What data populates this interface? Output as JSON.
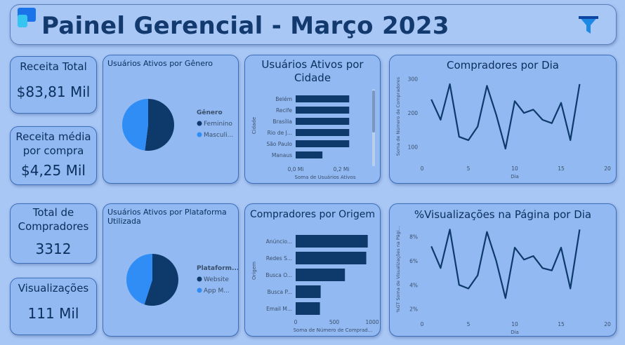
{
  "header": {
    "title": "Painel Gerencial - Março 2023"
  },
  "kpis": {
    "receita_total": {
      "label": "Receita Total",
      "value": "$83,81 Mil"
    },
    "receita_media": {
      "label": "Receita média por compra",
      "value": "$4,25 Mil"
    },
    "total_compradores": {
      "label": "Total de Compradores",
      "value": "3312"
    },
    "visualizacoes": {
      "label": "Visualizações",
      "value": "111 Mil"
    }
  },
  "colors": {
    "dark": "#0d3a6b",
    "light": "#2f8df5"
  },
  "icons": {
    "logo": "power-bi-logo",
    "filter": "filter-icon"
  },
  "chart_data": [
    {
      "id": "genero",
      "type": "pie",
      "title": "Usuários Ativos por Gênero",
      "legend_title": "Gênero",
      "categories": [
        "Feminino",
        "Masculi..."
      ],
      "values": [
        52,
        48
      ],
      "colors": [
        "#0d3a6b",
        "#2f8df5"
      ]
    },
    {
      "id": "cidade",
      "type": "bar",
      "orientation": "horizontal",
      "title": "Usuários Ativos por Cidade",
      "ylabel": "Cidade",
      "xlabel": "Soma de Usuários Ativos",
      "categories": [
        "Belém",
        "Recife",
        "Brasília",
        "Rio de J...",
        "São Paulo",
        "Manaus"
      ],
      "values": [
        0.26,
        0.26,
        0.26,
        0.26,
        0.26,
        0.13
      ],
      "xticks": [
        "0,0 Mi",
        "0,2 Mi"
      ],
      "xlim": [
        0,
        0.3
      ]
    },
    {
      "id": "compradores_dia",
      "type": "line",
      "title": "Compradores por Dia",
      "xlabel": "Dia",
      "ylabel": "Soma de Número de Compradores",
      "x": [
        1,
        2,
        3,
        4,
        5,
        6,
        7,
        8,
        9,
        10,
        11,
        12,
        13,
        14,
        15,
        16,
        17
      ],
      "y": [
        240,
        180,
        285,
        130,
        120,
        160,
        280,
        195,
        95,
        235,
        200,
        210,
        180,
        170,
        230,
        120,
        285
      ],
      "xticks": [
        "0",
        "5",
        "10",
        "15",
        "20"
      ],
      "yticks": [
        "100",
        "200",
        "300"
      ],
      "xlim": [
        0,
        20
      ],
      "ylim": [
        60,
        320
      ]
    },
    {
      "id": "plataforma",
      "type": "pie",
      "title": "Usuários Ativos por Plataforma Utilizada",
      "legend_title": "Plataform...",
      "categories": [
        "Website",
        "App M..."
      ],
      "values": [
        55,
        45
      ],
      "colors": [
        "#0d3a6b",
        "#2f8df5"
      ]
    },
    {
      "id": "origem",
      "type": "bar",
      "orientation": "horizontal",
      "title": "Compradores por Origem",
      "ylabel": "Origem",
      "xlabel": "Soma de Número de Comprad...",
      "categories": [
        "Anúncio...",
        "Redes S...",
        "Busca O...",
        "Busca P...",
        "Email M..."
      ],
      "values": [
        980,
        960,
        670,
        340,
        330
      ],
      "xticks": [
        "0",
        "500",
        "1000"
      ],
      "xlim": [
        0,
        1050
      ]
    },
    {
      "id": "visualizacoes_dia",
      "type": "line",
      "title": "%Visualizações na Página por Dia",
      "xlabel": "Dia",
      "ylabel": "%GT Soma de Visualizações na Pági...",
      "x": [
        1,
        2,
        3,
        4,
        5,
        6,
        7,
        8,
        9,
        10,
        11,
        12,
        13,
        14,
        15,
        16,
        17
      ],
      "y": [
        7.2,
        5.4,
        8.6,
        4.0,
        3.7,
        4.8,
        8.4,
        6.0,
        2.9,
        7.1,
        6.1,
        6.4,
        5.4,
        5.2,
        7.1,
        3.7,
        8.6
      ],
      "xticks": [
        "0",
        "5",
        "10",
        "15",
        "20"
      ],
      "yticks": [
        "2%",
        "4%",
        "6%",
        "8%"
      ],
      "xlim": [
        0,
        20
      ],
      "ylim": [
        1.4,
        9.2
      ]
    }
  ]
}
